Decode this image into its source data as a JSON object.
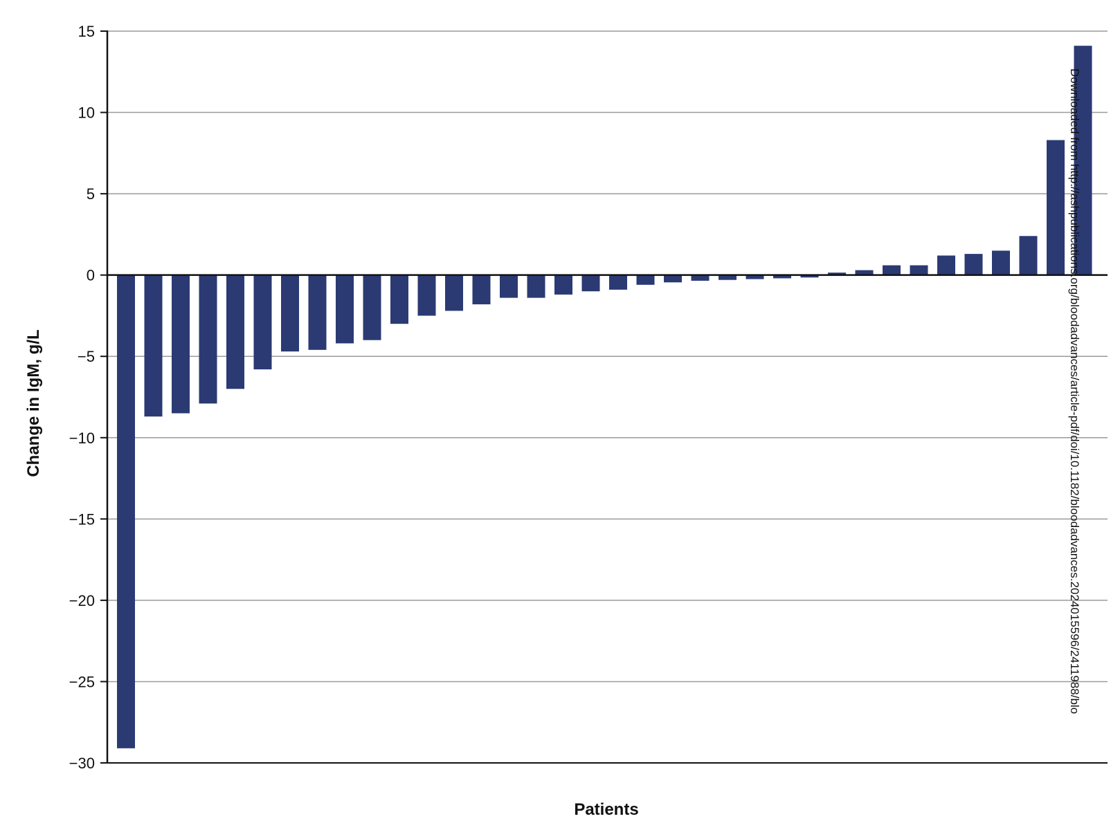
{
  "chart_data": {
    "type": "bar",
    "ylabel": "Change in IgM, g/L",
    "xlabel": "Patients",
    "ylim": [
      -30,
      15
    ],
    "yticks": [
      15,
      10,
      5,
      0,
      -5,
      -10,
      -15,
      -20,
      -25,
      -30
    ],
    "ytick_labels": [
      "15",
      "10",
      "5",
      "0",
      "−5",
      "−10",
      "−15",
      "−20",
      "−25",
      "−30"
    ],
    "grid": true,
    "bar_color": "#2b3a73",
    "values": [
      -29.1,
      -8.7,
      -8.5,
      -7.9,
      -7.0,
      -5.8,
      -4.7,
      -4.6,
      -4.2,
      -4.0,
      -3.0,
      -2.5,
      -2.2,
      -1.8,
      -1.4,
      -1.4,
      -1.2,
      -1.0,
      -0.9,
      -0.6,
      -0.45,
      -0.35,
      -0.3,
      -0.25,
      -0.2,
      -0.15,
      0.15,
      0.3,
      0.6,
      0.6,
      1.2,
      1.3,
      1.5,
      2.4,
      8.3,
      14.1
    ]
  },
  "watermark": "Downloaded from http://ashpublications.org/bloodadvances/article-pdf/doi/10.1182/bloodadvances.2024015596/2411988/blo"
}
